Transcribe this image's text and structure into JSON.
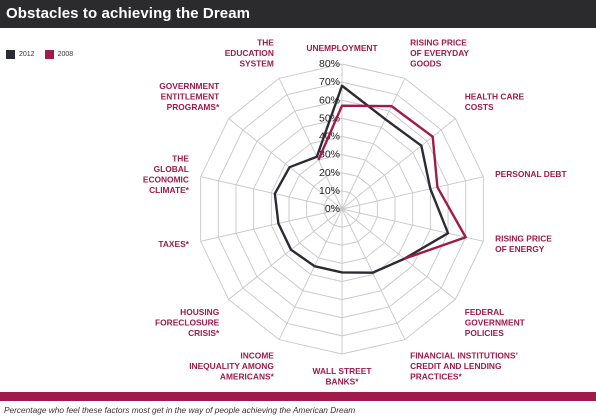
{
  "header": {
    "title": "Obstacles to achieving the Dream"
  },
  "caption": "Percentage who feel these factors most get in the way of people achieving the American Dream",
  "colors": {
    "series_2012": "#2b2b33",
    "series_2008": "#a01a4b",
    "grid": "#c8c8c8",
    "label": "#a01a4b",
    "title_bg": "#2b2b2e"
  },
  "chart_data": {
    "type": "radar",
    "title": "Obstacles to achieving the Dream",
    "axis_ticks": [
      "0%",
      "10%",
      "20%",
      "30%",
      "40%",
      "50%",
      "60%",
      "70%",
      "80%"
    ],
    "rlim": [
      0,
      80
    ],
    "categories": [
      [
        "UNEMPLOYMENT"
      ],
      [
        "RISING PRICE",
        "OF EVERYDAY",
        "GOODS"
      ],
      [
        "HEALTH CARE",
        "COSTS"
      ],
      [
        "PERSONAL DEBT"
      ],
      [
        "RISING PRICE",
        "OF ENERGY"
      ],
      [
        "FEDERAL",
        "GOVERNMENT",
        "POLICIES"
      ],
      [
        "FINANCIAL INSTITUTIONS’",
        "CREDIT AND LENDING",
        "PRACTICES*"
      ],
      [
        "WALL STREET",
        "BANKS*"
      ],
      [
        "INCOME",
        "INEQUALITY AMONG",
        "AMERICANS*"
      ],
      [
        "HOUSING",
        "FORECLOSURE",
        "CRISIS*"
      ],
      [
        "TAXES*"
      ],
      [
        "THE",
        "GLOBAL",
        "ECONOMIC",
        "CLIMATE*"
      ],
      [
        "GOVERNMENT",
        "ENTITLEMENT",
        "PROGRAMS*"
      ],
      [
        "THE",
        "EDUCATION",
        "SYSTEM"
      ]
    ],
    "series": [
      {
        "name": "2012",
        "values": [
          68,
          55,
          56,
          50,
          60,
          44,
          39,
          35,
          35,
          36,
          36,
          38,
          37,
          32
        ]
      },
      {
        "name": "2008",
        "values": [
          57,
          63,
          64,
          54,
          70,
          44,
          null,
          null,
          null,
          null,
          null,
          null,
          null,
          30
        ]
      }
    ],
    "legend": "top-left",
    "grid": true
  }
}
